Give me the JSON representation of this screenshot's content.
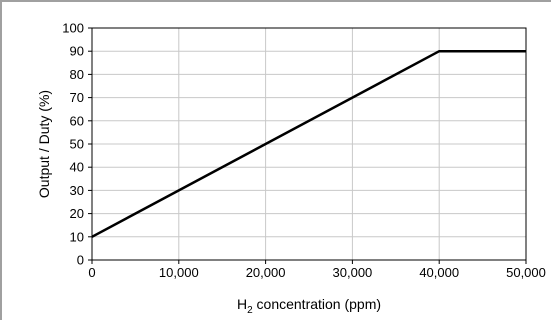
{
  "chart_data": {
    "type": "line",
    "title": "",
    "xlabel_prefix": "H",
    "xlabel_subscript": "2",
    "xlabel_suffix": " concentration (ppm)",
    "ylabel": "Output / Duty (%)",
    "xlim": [
      0,
      50000
    ],
    "ylim": [
      0,
      100
    ],
    "x_ticks": [
      0,
      10000,
      20000,
      30000,
      40000,
      50000
    ],
    "x_tick_labels": [
      "0",
      "10,000",
      "20,000",
      "30,000",
      "40,000",
      "50,000"
    ],
    "y_ticks": [
      0,
      10,
      20,
      30,
      40,
      50,
      60,
      70,
      80,
      90,
      100
    ],
    "y_tick_labels": [
      "0",
      "10",
      "20",
      "30",
      "40",
      "50",
      "60",
      "70",
      "80",
      "90",
      "100"
    ],
    "grid": true,
    "legend": "none",
    "series": [
      {
        "x": [
          0,
          40000,
          50000
        ],
        "y": [
          10,
          90,
          90
        ],
        "color": "#000000"
      }
    ]
  }
}
